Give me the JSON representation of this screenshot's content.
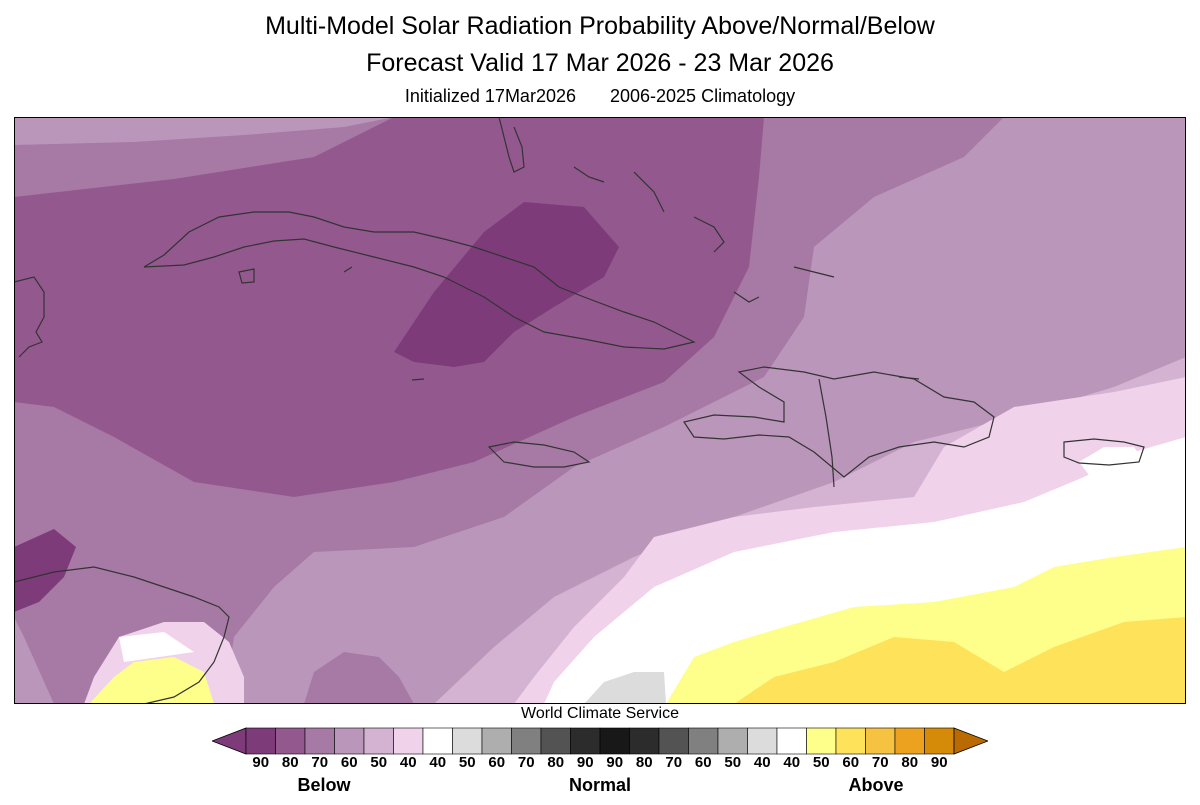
{
  "title_line1": "Multi-Model Solar Radiation Probability Above/Normal/Below",
  "title_line2": "Forecast Valid 17 Mar 2026 - 23 Mar 2026",
  "initialized": "Initialized 17Mar2026",
  "climatology": "2006-2025 Climatology",
  "credit": "World Climate Service",
  "legend": {
    "bins": [
      {
        "color": "#7e3b7a"
      },
      {
        "color": "#93598f"
      },
      {
        "color": "#a77aa5"
      },
      {
        "color": "#bb96bb"
      },
      {
        "color": "#d3b2d2"
      },
      {
        "color": "#f0d2ea"
      },
      {
        "color": "#ffffff"
      },
      {
        "color": "#dcdcdc"
      },
      {
        "color": "#aeaeae"
      },
      {
        "color": "#808080"
      },
      {
        "color": "#535353"
      },
      {
        "color": "#2c2c2c"
      },
      {
        "color": "#181818"
      },
      {
        "color": "#2c2c2c"
      },
      {
        "color": "#535353"
      },
      {
        "color": "#808080"
      },
      {
        "color": "#aeaeae"
      },
      {
        "color": "#dcdcdc"
      },
      {
        "color": "#ffffff"
      },
      {
        "color": "#fefe8a"
      },
      {
        "color": "#fde25a"
      },
      {
        "color": "#f6c242"
      },
      {
        "color": "#eca21e"
      },
      {
        "color": "#d58b08"
      }
    ],
    "arrow_left_color": "#7e3b7a",
    "arrow_right_color": "#b96a00",
    "ticks": [
      "90",
      "80",
      "70",
      "60",
      "50",
      "40",
      "40",
      "50",
      "60",
      "70",
      "80",
      "90",
      "90",
      "80",
      "70",
      "60",
      "50",
      "40",
      "40",
      "50",
      "60",
      "70",
      "80",
      "90"
    ],
    "categories": [
      "Below",
      "Normal",
      "Above"
    ]
  },
  "map": {
    "region": "Caribbean",
    "palette": {
      "below_90": "#7e3b7a",
      "below_80": "#93598f",
      "below_70": "#a77aa5",
      "below_60": "#bb96bb",
      "below_50": "#d3b2d2",
      "below_40": "#f0d2ea",
      "neutral": "#ffffff",
      "normal_50": "#dcdcdc",
      "above_50": "#fefe8a",
      "above_60": "#fde25a",
      "above_70": "#f6c242"
    }
  }
}
